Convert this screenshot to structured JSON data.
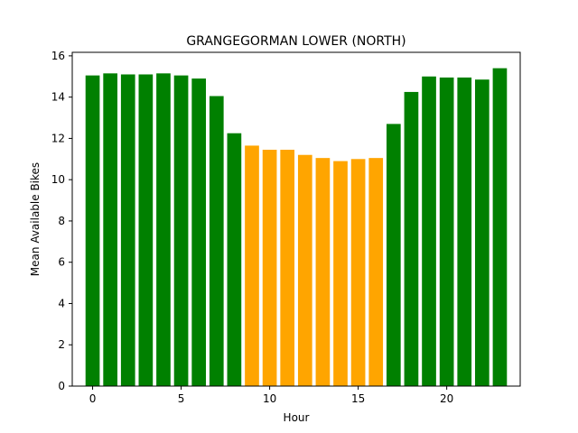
{
  "chart_data": {
    "type": "bar",
    "title": "GRANGEGORMAN LOWER (NORTH)",
    "xlabel": "Hour",
    "ylabel": "Mean Available Bikes",
    "x": [
      0,
      1,
      2,
      3,
      4,
      5,
      6,
      7,
      8,
      9,
      10,
      11,
      12,
      13,
      14,
      15,
      16,
      17,
      18,
      19,
      20,
      21,
      22,
      23
    ],
    "values": [
      15.05,
      15.15,
      15.1,
      15.1,
      15.15,
      15.05,
      14.9,
      14.05,
      12.25,
      11.65,
      11.45,
      11.45,
      11.2,
      11.05,
      10.9,
      11.0,
      11.05,
      12.7,
      14.25,
      15.0,
      14.95,
      14.95,
      14.85,
      15.4
    ],
    "colors": [
      "green",
      "green",
      "green",
      "green",
      "green",
      "green",
      "green",
      "green",
      "green",
      "orange",
      "orange",
      "orange",
      "orange",
      "orange",
      "orange",
      "orange",
      "orange",
      "green",
      "green",
      "green",
      "green",
      "green",
      "green",
      "green"
    ],
    "bar_colors": {
      "green": "#008000",
      "orange": "#ffa500"
    },
    "xlim": [
      -1.15,
      24.15
    ],
    "ylim": [
      0,
      16.17
    ],
    "xticks": [
      0,
      5,
      10,
      15,
      20
    ],
    "yticks": [
      0,
      2,
      4,
      6,
      8,
      10,
      12,
      14,
      16
    ],
    "grid": false
  }
}
